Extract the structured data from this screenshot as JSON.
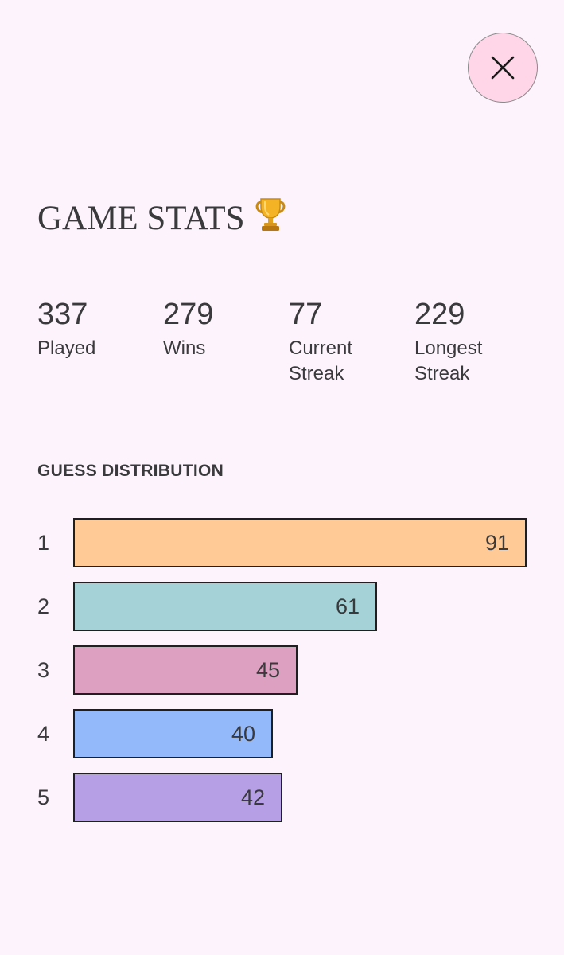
{
  "header": {
    "close_icon": "close-icon",
    "close_button_color": "#ffd6e8"
  },
  "title": {
    "text": "GAME STATS",
    "emoji_icon": "trophy-icon"
  },
  "stats": [
    {
      "value": "337",
      "label_line1": "Played",
      "label_line2": ""
    },
    {
      "value": "279",
      "label_line1": "Wins",
      "label_line2": ""
    },
    {
      "value": "77",
      "label_line1": "Current",
      "label_line2": "Streak"
    },
    {
      "value": "229",
      "label_line1": "Longest",
      "label_line2": "Streak"
    }
  ],
  "distribution": {
    "heading": "GUESS DISTRIBUTION",
    "rows": [
      {
        "guess": "1",
        "count": 91,
        "color": "#ffca95"
      },
      {
        "guess": "2",
        "count": 61,
        "color": "#a5d2d6"
      },
      {
        "guess": "3",
        "count": 45,
        "color": "#dea0c0"
      },
      {
        "guess": "4",
        "count": 40,
        "color": "#93b9fb"
      },
      {
        "guess": "5",
        "count": 42,
        "color": "#b69fe4"
      }
    ]
  },
  "colors": {
    "background": "#fdf3fc",
    "text": "#3a3a3c",
    "bar_border": "#1f1f1f"
  }
}
